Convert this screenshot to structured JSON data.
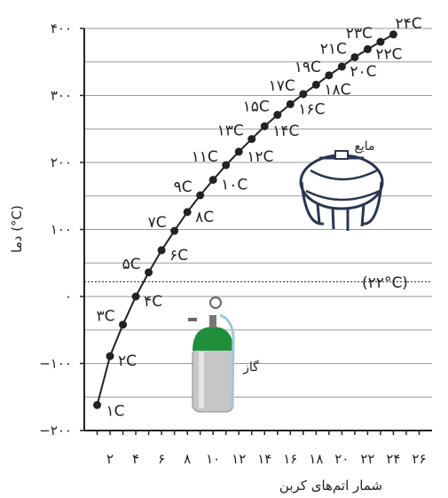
{
  "chart_data": {
    "type": "line",
    "xlabel": "شمار اتم‌های کربن",
    "ylabel": "دما (°C)",
    "x_ticks": [
      {
        "value": 2,
        "label": "۲"
      },
      {
        "value": 4,
        "label": "۴"
      },
      {
        "value": 6,
        "label": "۶"
      },
      {
        "value": 8,
        "label": "۸"
      },
      {
        "value": 10,
        "label": "۱۰"
      },
      {
        "value": 12,
        "label": "۱۲"
      },
      {
        "value": 14,
        "label": "۱۴"
      },
      {
        "value": 16,
        "label": "۱۶"
      },
      {
        "value": 18,
        "label": "۱۸"
      },
      {
        "value": 20,
        "label": "۲۰"
      },
      {
        "value": 22,
        "label": "۲۲"
      },
      {
        "value": 24,
        "label": "۲۴"
      },
      {
        "value": 26,
        "label": "۲۶"
      }
    ],
    "y_ticks": [
      {
        "value": -200,
        "label": "−۲۰۰"
      },
      {
        "value": -100,
        "label": "−۱۰۰"
      },
      {
        "value": 0,
        "label": "۰"
      },
      {
        "value": 100,
        "label": "۱۰۰"
      },
      {
        "value": 200,
        "label": "۲۰۰"
      },
      {
        "value": 300,
        "label": "۳۰۰"
      },
      {
        "value": 400,
        "label": "۴۰۰"
      }
    ],
    "xlim": [
      0,
      27
    ],
    "ylim": [
      -200,
      400
    ],
    "grid": "horizontal",
    "points": [
      {
        "x": 1,
        "y": -162,
        "label": "۱C"
      },
      {
        "x": 2,
        "y": -89,
        "label": "۲C"
      },
      {
        "x": 3,
        "y": -42,
        "label": "۳C"
      },
      {
        "x": 4,
        "y": 0,
        "label": "۴C"
      },
      {
        "x": 5,
        "y": 36,
        "label": "۵C"
      },
      {
        "x": 6,
        "y": 69,
        "label": "۶C"
      },
      {
        "x": 7,
        "y": 98,
        "label": "۷C"
      },
      {
        "x": 8,
        "y": 126,
        "label": "۸C"
      },
      {
        "x": 9,
        "y": 151,
        "label": "۹C"
      },
      {
        "x": 10,
        "y": 174,
        "label": "۱۰C"
      },
      {
        "x": 11,
        "y": 196,
        "label": "۱۱C"
      },
      {
        "x": 12,
        "y": 216,
        "label": "۱۲C"
      },
      {
        "x": 13,
        "y": 235,
        "label": "۱۳C"
      },
      {
        "x": 14,
        "y": 254,
        "label": "۱۴C"
      },
      {
        "x": 15,
        "y": 271,
        "label": "۱۵C"
      },
      {
        "x": 16,
        "y": 287,
        "label": "۱۶C"
      },
      {
        "x": 17,
        "y": 302,
        "label": "۱۷C"
      },
      {
        "x": 18,
        "y": 316,
        "label": "۱۸C"
      },
      {
        "x": 19,
        "y": 330,
        "label": "۱۹C"
      },
      {
        "x": 20,
        "y": 343,
        "label": "۲۰C"
      },
      {
        "x": 21,
        "y": 357,
        "label": "۲۱C"
      },
      {
        "x": 22,
        "y": 369,
        "label": "۲۲C"
      },
      {
        "x": 23,
        "y": 380,
        "label": "۲۳C"
      },
      {
        "x": 24,
        "y": 391,
        "label": "۲۴C"
      }
    ],
    "reference_line": {
      "y": 22,
      "label": "(۲۲°C)"
    },
    "annotations": {
      "liquid": "مایع",
      "gas": "گاز"
    },
    "colors": {
      "line": "#222222",
      "marker": "#222222",
      "grid": "#9a9a9a",
      "cylinder_cap": "#1f8f3c",
      "cylinder_body": "#c6c6c6",
      "tank": "#2a3552"
    }
  }
}
